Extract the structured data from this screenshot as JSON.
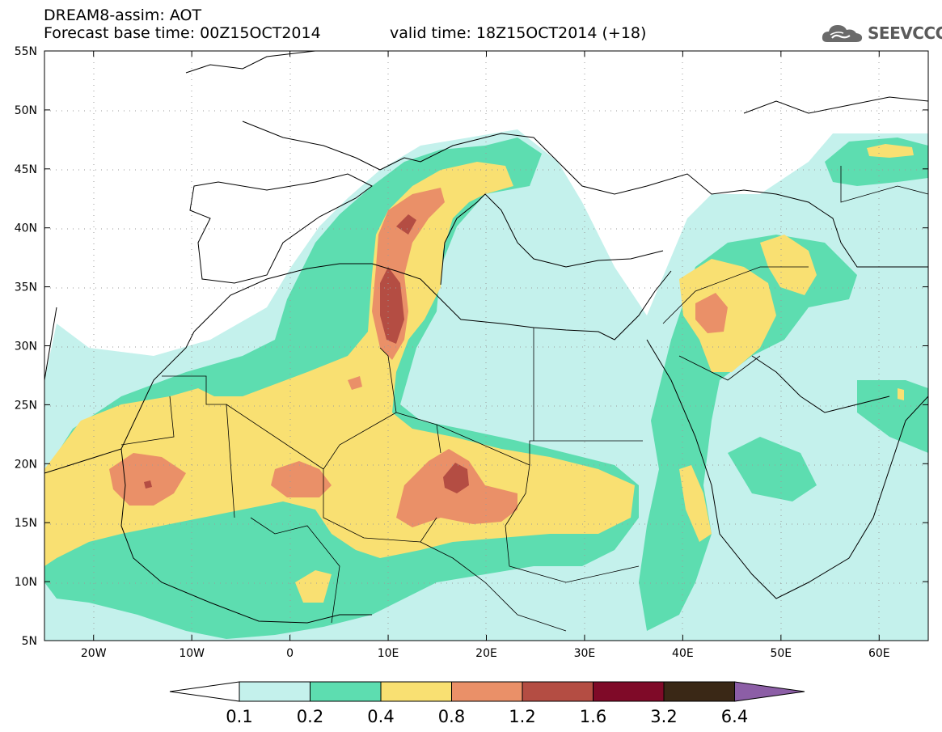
{
  "header": {
    "title": "DREAM8-assim: AOT",
    "base_time": "Forecast base time: 00Z15OCT2014",
    "valid_time": "valid time: 18Z15OCT2014 (+18)"
  },
  "logo": {
    "text": "SEEVCCC",
    "icon": "cloud-icon"
  },
  "map": {
    "lat_labels": [
      "55N",
      "50N",
      "45N",
      "40N",
      "35N",
      "30N",
      "25N",
      "20N",
      "15N",
      "10N",
      "5N"
    ],
    "lon_labels": [
      "20W",
      "10W",
      "0",
      "10E",
      "20E",
      "30E",
      "40E",
      "50E",
      "60E"
    ],
    "lat_values": [
      55,
      50,
      45,
      40,
      35,
      30,
      25,
      20,
      15,
      10,
      5
    ],
    "lon_values": [
      -20,
      -10,
      0,
      10,
      20,
      30,
      40,
      50,
      60
    ],
    "lon_range": [
      -25,
      65
    ],
    "lat_range": [
      5,
      55
    ],
    "grid": "dotted"
  },
  "legend": {
    "tick_labels": [
      "0.1",
      "0.2",
      "0.4",
      "0.8",
      "1.2",
      "1.6",
      "3.2",
      "6.4"
    ],
    "colors": [
      "#ffffff",
      "#c4f1ec",
      "#5dddb0",
      "#f9e072",
      "#ea9068",
      "#b44d43",
      "#7f0a28",
      "#3a2816",
      "#8c5ea6"
    ]
  }
}
